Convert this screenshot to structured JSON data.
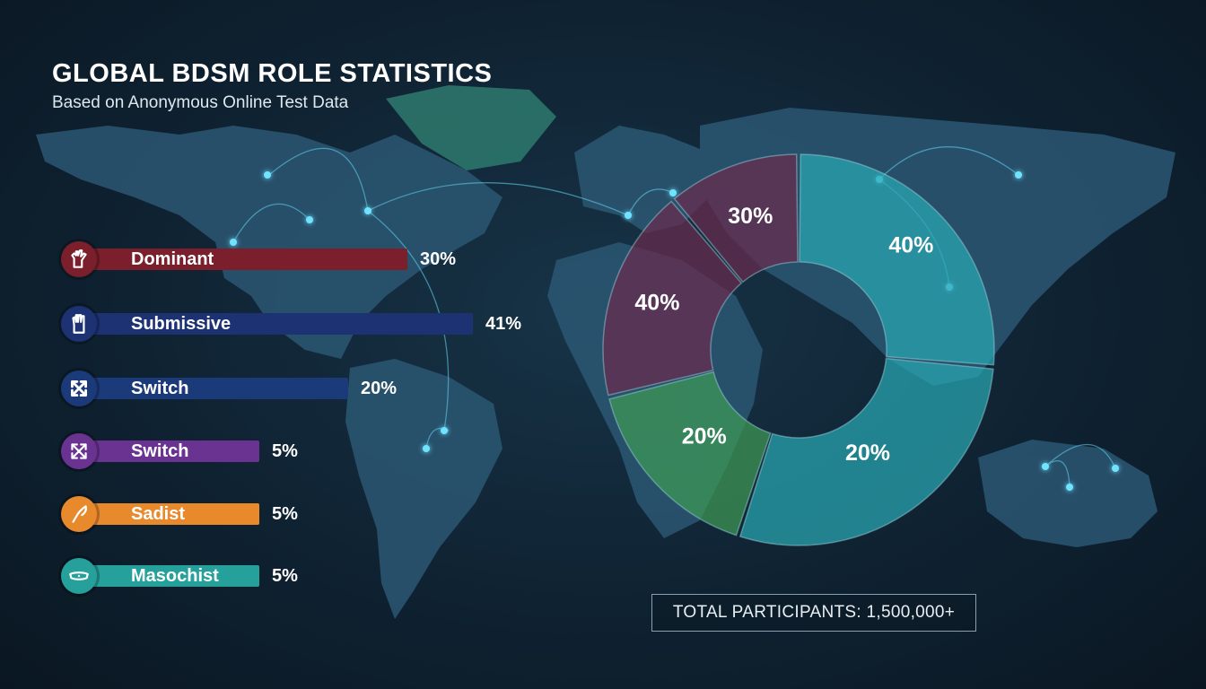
{
  "header": {
    "title": "GLOBAL BDSM ROLE STATISTICS",
    "subtitle": "Based on Anonymous Online Test Data"
  },
  "chart_data": [
    {
      "type": "bar",
      "orientation": "horizontal",
      "title": "",
      "xlabel": "",
      "ylabel": "",
      "categories": [
        "Dominant",
        "Submissive",
        "Switch",
        "Switch",
        "Sadist",
        "Masochist"
      ],
      "values": [
        30,
        41,
        20,
        5,
        5,
        5
      ],
      "value_labels": [
        "30%",
        "41%",
        "20%",
        "5%",
        "5%",
        "5%"
      ],
      "colors": [
        "#7a1f2b",
        "#1c3273",
        "#1b3a7a",
        "#6a3392",
        "#e8892b",
        "#26a09a"
      ],
      "icons": [
        "glove-icon",
        "glove-icon",
        "crossed-arrows-icon",
        "crossed-arrows-icon",
        "whip-icon",
        "blindfold-icon"
      ]
    },
    {
      "type": "pie",
      "variant": "donut",
      "title": "",
      "slices": [
        {
          "label": "40%",
          "value": 40,
          "color": "#2aa7b3"
        },
        {
          "label": "20%",
          "value": 20,
          "color": "#2aa7b3"
        },
        {
          "label": "20%",
          "value": 20,
          "color": "#3f9a56"
        },
        {
          "label": "40%",
          "value": 40,
          "color": "#6a2b4e"
        },
        {
          "label": "30%",
          "value": 30,
          "color": "#6a2b4e"
        }
      ]
    }
  ],
  "footer": {
    "total_label": "TOTAL PARTICIPANTS: 1,500,000+"
  }
}
